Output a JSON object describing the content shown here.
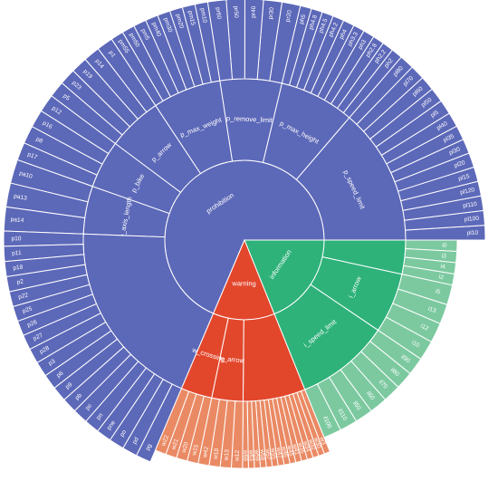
{
  "chart_data": {
    "type": "sunburst",
    "title": "",
    "levels": [
      "root",
      "group",
      "sign"
    ],
    "colors": {
      "prohibition": "#5c68b8",
      "information": "#2eb27a",
      "warning": "#e2472c",
      "warning_leaf": "#ea8a64",
      "information_leaf": "#7cc9a0"
    },
    "roots": [
      {
        "name": "prohibition",
        "color": "#5c68b8",
        "groups": [
          {
            "name": "p_speed_limit",
            "leaves": [
              "pl10",
              "pl100",
              "pl110",
              "pl120",
              "pl15",
              "pl20",
              "pl30",
              "pl35",
              "pl40",
              "pl5",
              "pl50",
              "pl60",
              "pl70",
              "pl80"
            ]
          },
          {
            "name": "p_max_height",
            "leaves": [
              "ph2",
              "ph2.2",
              "ph2.8",
              "ph3",
              "ph3.3",
              "ph4",
              "ph4.2",
              "ph4.5",
              "ph4.8",
              "ph5"
            ]
          },
          {
            "name": "p_remove_limit",
            "leaves": [
              "pr20",
              "pr30",
              "pr40",
              "pr50",
              "pr60"
            ]
          },
          {
            "name": "p_max_weight",
            "leaves": [
              "pm10",
              "pm15",
              "pm20",
              "pm30",
              "pm40",
              "pm5",
              "pm50",
              "pm55"
            ]
          },
          {
            "name": "p_arrow",
            "leaves": [
              "p1",
              "p14",
              "p19",
              "p23",
              "p5"
            ]
          },
          {
            "name": "p_bike",
            "leaves": [
              "p12",
              "p16",
              "p8",
              "p17"
            ]
          },
          {
            "name": "p_axis_length",
            "leaves": [
              "pa10",
              "pa13",
              "pa14"
            ]
          },
          {
            "name": "p_others",
            "leaves": [
              "p10",
              "p11",
              "p18",
              "p2",
              "p22",
              "p25",
              "p26",
              "p27",
              "p28",
              "p3",
              "p6",
              "p9",
              "pb",
              "pc",
              "pn",
              "pne",
              "po",
              "pd",
              "pg"
            ]
          }
        ]
      },
      {
        "name": "information",
        "color": "#2eb27a",
        "groups": [
          {
            "name": "i_others",
            "leaves": [
              "i0",
              "i3",
              "i4",
              "i2"
            ]
          },
          {
            "name": "i_arrow",
            "leaves": [
              "i5",
              "i13",
              "i12",
              "i10"
            ]
          },
          {
            "name": "i_speed_limit",
            "leaves": [
              "il90",
              "il80",
              "il70",
              "il60",
              "il50",
              "il110",
              "il100"
            ]
          }
        ]
      },
      {
        "name": "warning",
        "color": "#e2472c",
        "groups": [
          {
            "name": "w_others",
            "leaves": [
              "w3",
              "w30",
              "w32",
              "w34",
              "w35",
              "w41",
              "w45",
              "w46",
              "w47",
              "w55",
              "w57",
              "w58",
              "w59",
              "w63",
              "w66"
            ]
          },
          {
            "name": "w_arrow",
            "leaves": [
              "w12",
              "w13",
              "w18",
              "w42"
            ]
          },
          {
            "name": "w_crossing",
            "leaves": [
              "w15",
              "w20",
              "w21",
              "w22"
            ]
          }
        ]
      }
    ]
  }
}
